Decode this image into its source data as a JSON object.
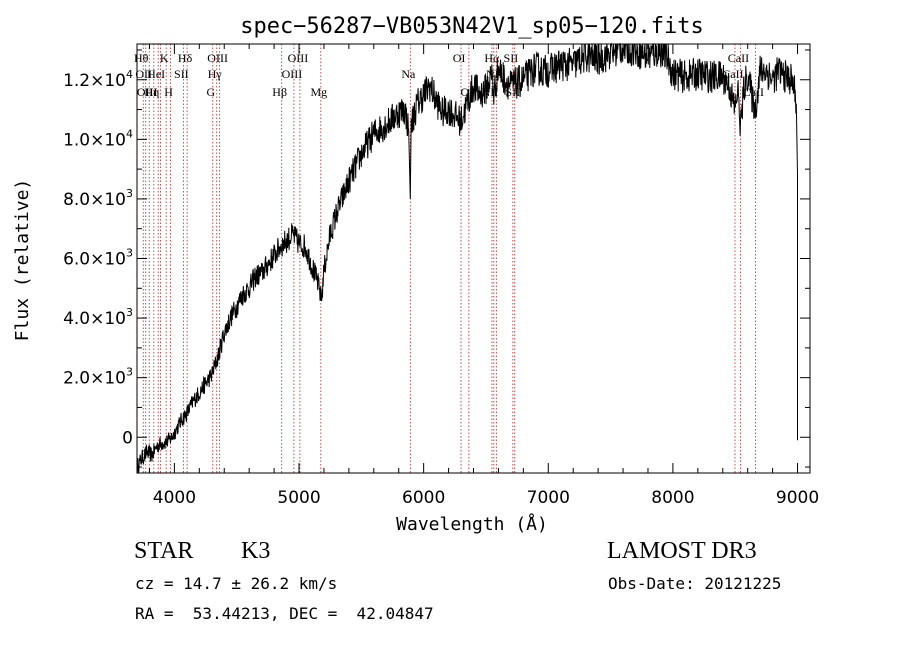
{
  "chart_data": {
    "type": "line",
    "title": "spec−56287−VB053N42V1_sp05−120.fits",
    "xlabel": "Wavelength (Å)",
    "ylabel": "Flux (relative)",
    "xlim": [
      3700,
      9100
    ],
    "ylim": [
      -1200,
      13200
    ],
    "xticks": [
      {
        "value": 4000,
        "label": "4000"
      },
      {
        "value": 5000,
        "label": "5000"
      },
      {
        "value": 6000,
        "label": "6000"
      },
      {
        "value": 7000,
        "label": "7000"
      },
      {
        "value": 8000,
        "label": "8000"
      },
      {
        "value": 9000,
        "label": "9000"
      }
    ],
    "yticks": [
      {
        "value": 0,
        "label": "0",
        "exp": ""
      },
      {
        "value": 2000,
        "label": "2.0×10",
        "exp": "3"
      },
      {
        "value": 4000,
        "label": "4.0×10",
        "exp": "3"
      },
      {
        "value": 6000,
        "label": "6.0×10",
        "exp": "3"
      },
      {
        "value": 8000,
        "label": "8.0×10",
        "exp": "3"
      },
      {
        "value": 10000,
        "label": "1.0×10",
        "exp": "4"
      },
      {
        "value": 12000,
        "label": "1.2×10",
        "exp": "4"
      }
    ],
    "series": [
      {
        "name": "flux",
        "x": [
          3700,
          3740,
          3780,
          3820,
          3860,
          3900,
          3940,
          3980,
          4020,
          4060,
          4100,
          4150,
          4200,
          4250,
          4300,
          4350,
          4400,
          4450,
          4500,
          4550,
          4600,
          4650,
          4700,
          4750,
          4800,
          4850,
          4900,
          4950,
          5000,
          5050,
          5100,
          5150,
          5180,
          5200,
          5250,
          5300,
          5400,
          5500,
          5600,
          5700,
          5800,
          5850,
          5880,
          5893,
          5900,
          5950,
          6000,
          6050,
          6100,
          6150,
          6200,
          6250,
          6300,
          6350,
          6400,
          6450,
          6500,
          6550,
          6563,
          6600,
          6650,
          6700,
          6750,
          6800,
          6850,
          6900,
          6950,
          7000,
          7100,
          7200,
          7300,
          7400,
          7500,
          7600,
          7700,
          7800,
          7850,
          7900,
          7950,
          8000,
          8100,
          8200,
          8300,
          8400,
          8450,
          8498,
          8520,
          8542,
          8570,
          8600,
          8640,
          8662,
          8700,
          8750,
          8800,
          8850,
          8900,
          8950,
          8970,
          8990,
          9000,
          9000
        ],
        "y": [
          -1000,
          -700,
          -500,
          -600,
          -300,
          -200,
          -150,
          0,
          300,
          600,
          800,
          1200,
          1500,
          1800,
          2100,
          2700,
          3500,
          4000,
          4400,
          4800,
          5000,
          5400,
          5500,
          5800,
          6100,
          6400,
          6600,
          6800,
          6500,
          6400,
          5800,
          5200,
          4600,
          5600,
          6800,
          7500,
          8600,
          9500,
          10200,
          10500,
          10900,
          11000,
          10300,
          8000,
          10500,
          11200,
          11500,
          11800,
          11300,
          10900,
          11000,
          10800,
          10600,
          11200,
          11800,
          11500,
          11700,
          12200,
          11500,
          12400,
          12000,
          11800,
          11900,
          12000,
          12200,
          12400,
          12300,
          12300,
          12500,
          12500,
          12800,
          12700,
          12900,
          13100,
          13000,
          12800,
          12900,
          13000,
          12800,
          12200,
          12100,
          12200,
          12100,
          12100,
          11800,
          11000,
          11700,
          10400,
          11700,
          12200,
          11300,
          11000,
          12300,
          12300,
          12000,
          12300,
          12100,
          12000,
          11800,
          11200,
          8800,
          -100
        ]
      }
    ],
    "lines": [
      {
        "x": 3750,
        "label": "Hθ",
        "row": 1
      },
      {
        "x": 3770,
        "label": "OII",
        "row": 2
      },
      {
        "x": 3798,
        "label": "OIII",
        "row": 3
      },
      {
        "x": 3835,
        "label": "Hη",
        "row": 3
      },
      {
        "x": 3870,
        "label": "HeI",
        "row": 2
      },
      {
        "x": 3889,
        "label": "",
        "row": 0
      },
      {
        "x": 3934,
        "label": "K",
        "row": 1
      },
      {
        "x": 3969,
        "label": "H",
        "row": 3
      },
      {
        "x": 4072,
        "label": "SII",
        "row": 2
      },
      {
        "x": 4102,
        "label": "Hδ",
        "row": 1
      },
      {
        "x": 4308,
        "label": "G",
        "row": 3
      },
      {
        "x": 4340,
        "label": "Hγ",
        "row": 2
      },
      {
        "x": 4363,
        "label": "OIII",
        "row": 1
      },
      {
        "x": 4861,
        "label": "Hβ",
        "row": 3
      },
      {
        "x": 4959,
        "label": "OIII",
        "row": 2
      },
      {
        "x": 5007,
        "label": "OIII",
        "row": 1
      },
      {
        "x": 5175,
        "label": "Mg",
        "row": 3
      },
      {
        "x": 5893,
        "label": "Na",
        "row": 2
      },
      {
        "x": 6300,
        "label": "OI",
        "row": 1
      },
      {
        "x": 6363,
        "label": "OI",
        "row": 3
      },
      {
        "x": 6548,
        "label": "NII",
        "row": 3
      },
      {
        "x": 6563,
        "label": "Hα",
        "row": 1
      },
      {
        "x": 6583,
        "label": "NII",
        "row": 2
      },
      {
        "x": 6716,
        "label": "SII",
        "row": 1
      },
      {
        "x": 6731,
        "label": "SII",
        "row": 3
      },
      {
        "x": 8498,
        "label": "CaII",
        "row": 2
      },
      {
        "x": 8542,
        "label": "CaII",
        "row": 1
      },
      {
        "x": 8662,
        "label": "CaII",
        "row": 3
      }
    ]
  },
  "info": {
    "class_label": "STAR",
    "subclass": "K3",
    "survey": "LAMOST DR3",
    "redshift_line": "cz = 14.7 ± 26.2 km/s",
    "obs_date_line": "Obs-Date: 20121225",
    "coords_line": "RA =  53.44213, DEC =  42.04847"
  },
  "colors": {
    "axis": "#000000",
    "line_marker": "#b22222",
    "spectrum": "#000000"
  }
}
